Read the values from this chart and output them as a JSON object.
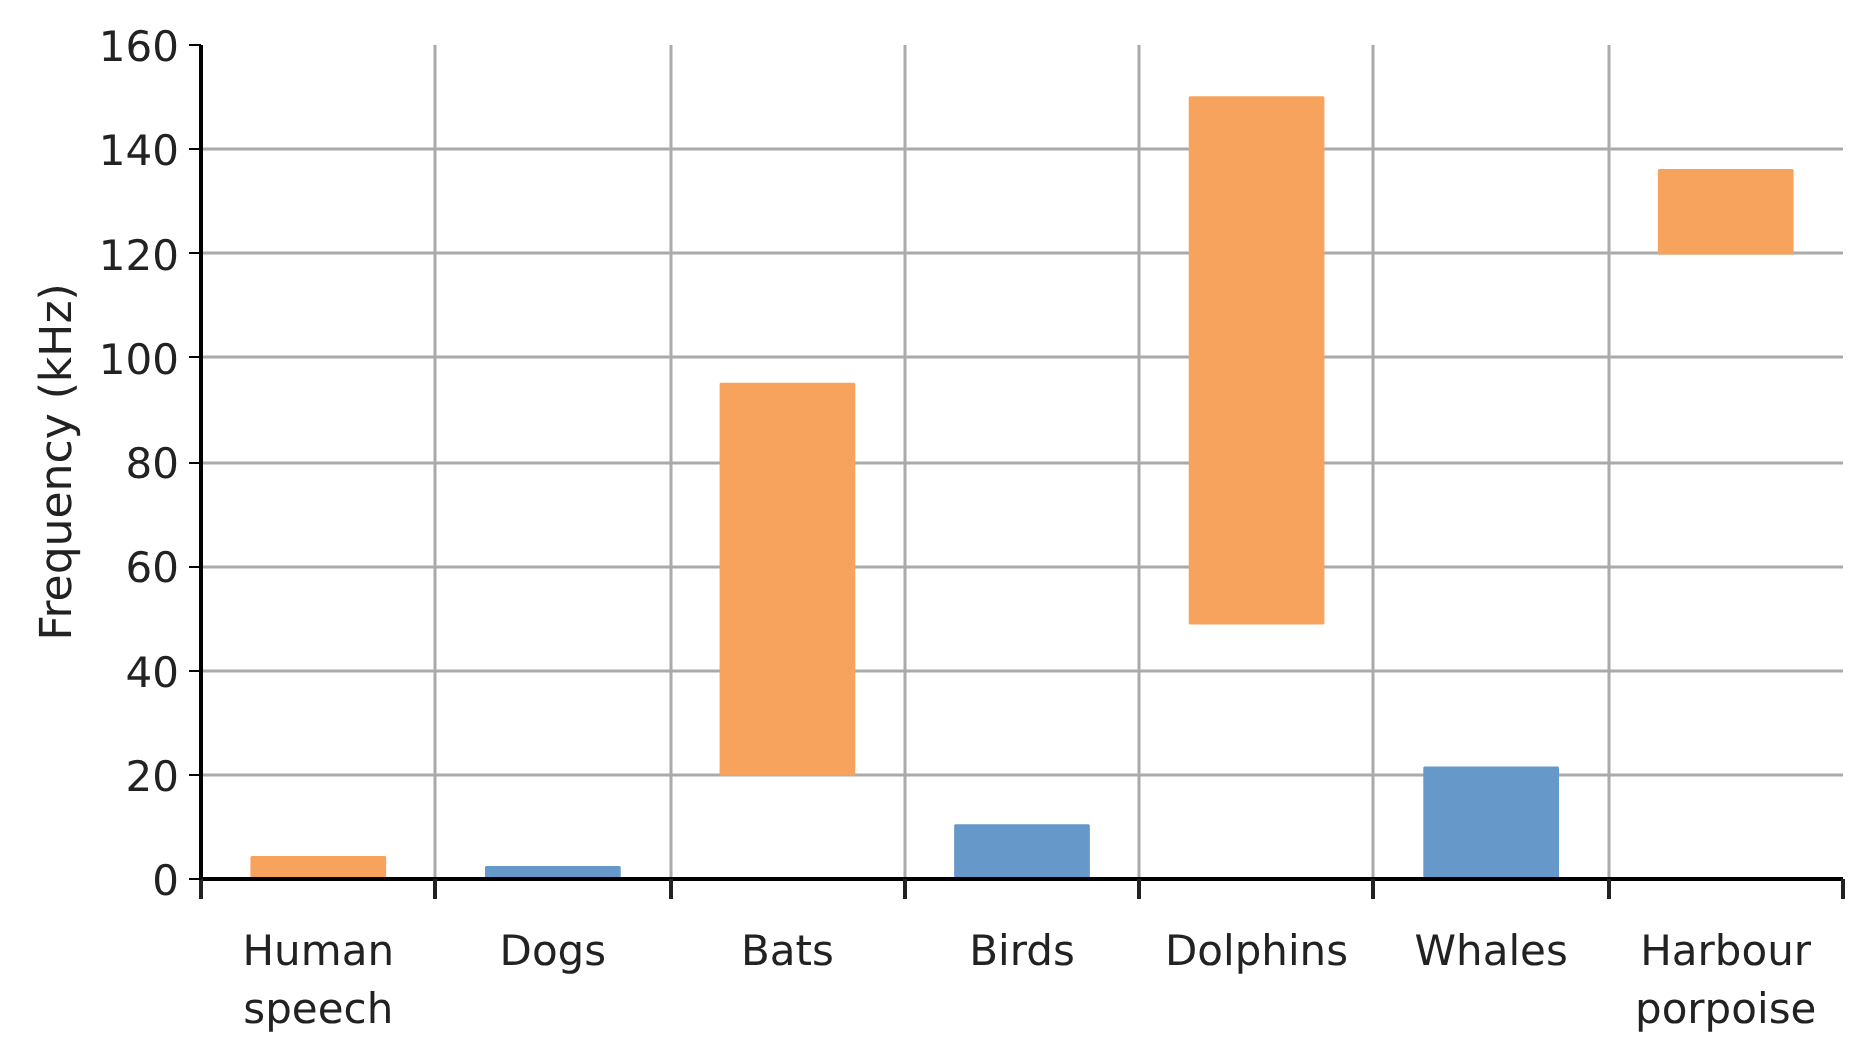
{
  "chart_data": {
    "type": "bar",
    "ylabel": "Frequency (kHz)",
    "categories": [
      "Human speech",
      "Dogs",
      "Bats",
      "Birds",
      "Dolphins",
      "Whales",
      "Harbour porpoise"
    ],
    "base": [
      0,
      0,
      20,
      0,
      49,
      0,
      120
    ],
    "values": [
      4.2,
      2.3,
      75,
      10.3,
      101,
      21.4,
      16
    ],
    "colors": [
      "#f8a35d",
      "#6699c9",
      "#f8a35d",
      "#6699c9",
      "#f8a35d",
      "#6699c9",
      "#f8a35d"
    ],
    "ylim": [
      0,
      160
    ],
    "yticks": [
      0,
      20,
      40,
      60,
      80,
      100,
      120,
      140,
      160
    ],
    "grid": true
  }
}
